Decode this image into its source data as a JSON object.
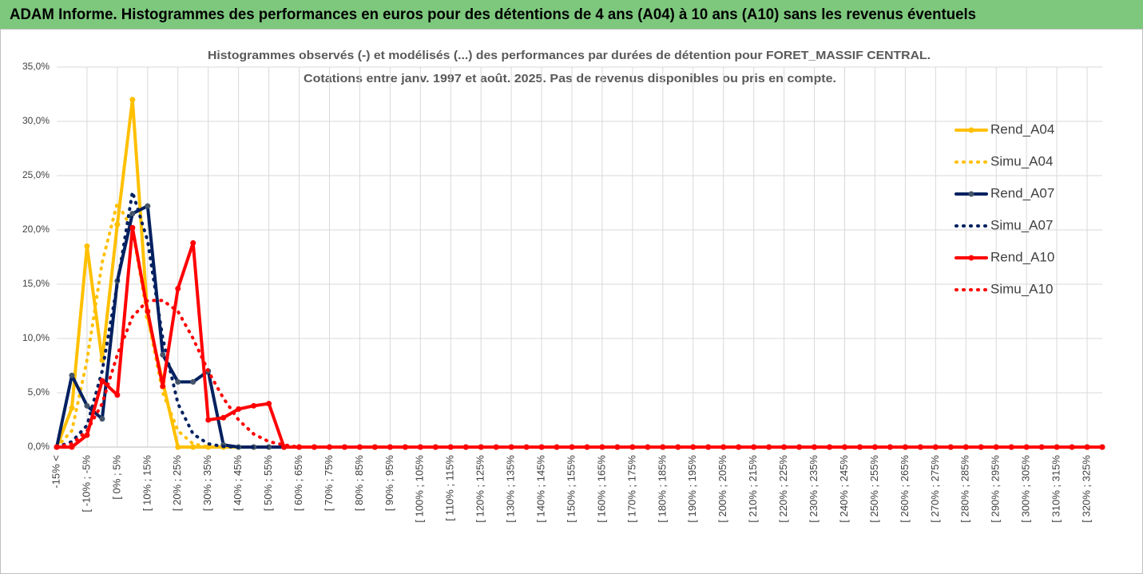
{
  "header": {
    "title": "ADAM Informe. Histogrammes des performances en euros pour des détentions de 4 ans (A04) à 10 ans (A10) sans les revenus éventuels"
  },
  "chart_data": {
    "type": "line",
    "title": [
      "Histogrammes observés (-) et modélisés (...) des performances par durées de détention pour FORET_MASSIF CENTRAL.",
      "Cotations entre janv. 1997 et août. 2025. Pas de revenus disponibles ou pris en compte."
    ],
    "categories": [
      "-15% <",
      null,
      "[ -10% ; -5%",
      null,
      "[ 0% ; 5%",
      null,
      "[ 10% ; 15%",
      null,
      "[ 20% ; 25%",
      null,
      "[ 30% ; 35%",
      null,
      "[ 40% ; 45%",
      null,
      "[ 50% ; 55%",
      null,
      "[ 60% ; 65%",
      null,
      "[ 70% ; 75%",
      null,
      "[ 80% ; 85%",
      null,
      "[ 90% ; 95%",
      null,
      "[ 100% ; 105%",
      null,
      "[ 110% ; 115%",
      null,
      "[ 120% ; 125%",
      null,
      "[ 130% ; 135%",
      null,
      "[ 140% ; 145%",
      null,
      "[ 150% ; 155%",
      null,
      "[ 160% ; 165%",
      null,
      "[ 170% ; 175%",
      null,
      "[ 180% ; 185%",
      null,
      "[ 190% ; 195%",
      null,
      "[ 200% ; 205%",
      null,
      "[ 210% ; 215%",
      null,
      "[ 220% ; 225%",
      null,
      "[ 230% ; 235%",
      null,
      "[ 240% ; 245%",
      null,
      "[ 250% ; 255%",
      null,
      "[ 260% ; 265%",
      null,
      "[ 270% ; 275%",
      null,
      "[ 280% ; 285%",
      null,
      "[ 290% ; 295%",
      null,
      "[ 300% ; 305%",
      null,
      "[ 310% ; 315%",
      null,
      "[ 320% ; 325%",
      null
    ],
    "series": [
      {
        "name": "Rend_A04",
        "color": "#FFC000",
        "line_style": "solid",
        "markers": true,
        "values": [
          0,
          3.6,
          18.5,
          8.0,
          20.5,
          32.0,
          12.0,
          6.0,
          0,
          0,
          0,
          0,
          0,
          0,
          0,
          0,
          0,
          0,
          0,
          0,
          0,
          0,
          0,
          0,
          0,
          0,
          0,
          0,
          0,
          0,
          0,
          0,
          0,
          0,
          0,
          0,
          0,
          0,
          0,
          0,
          0,
          0,
          0,
          0,
          0,
          0,
          0,
          0,
          0,
          0,
          0,
          0,
          0,
          0,
          0,
          0,
          0,
          0,
          0,
          0,
          0,
          0,
          0,
          0,
          0,
          0,
          0,
          0,
          0,
          0
        ]
      },
      {
        "name": "Simu_A04",
        "color": "#FFC000",
        "line_style": "dotted",
        "markers": false,
        "values": [
          0,
          1.5,
          8,
          17,
          22.5,
          20,
          12,
          5,
          1.5,
          0.3,
          0,
          0,
          0,
          0,
          0,
          0,
          0,
          0,
          0,
          0,
          0,
          0,
          0,
          0,
          0,
          0,
          0,
          0,
          0,
          0,
          0,
          0,
          0,
          0,
          0,
          0,
          0,
          0,
          0,
          0,
          0,
          0,
          0,
          0,
          0,
          0,
          0,
          0,
          0,
          0,
          0,
          0,
          0,
          0,
          0,
          0,
          0,
          0,
          0,
          0,
          0,
          0,
          0,
          0,
          0,
          0,
          0,
          0,
          0,
          0
        ]
      },
      {
        "name": "Rend_A07",
        "color": "#002060",
        "line_style": "solid",
        "markers": true,
        "values": [
          0,
          6.6,
          3.8,
          2.6,
          15.3,
          21.5,
          22.2,
          8.5,
          6.0,
          6.0,
          7.0,
          0.2,
          0,
          0,
          0,
          0,
          0,
          0,
          0,
          0,
          0,
          0,
          0,
          0,
          0,
          0,
          0,
          0,
          0,
          0,
          0,
          0,
          0,
          0,
          0,
          0,
          0,
          0,
          0,
          0,
          0,
          0,
          0,
          0,
          0,
          0,
          0,
          0,
          0,
          0,
          0,
          0,
          0,
          0,
          0,
          0,
          0,
          0,
          0,
          0,
          0,
          0,
          0,
          0,
          0,
          0,
          0,
          0,
          0,
          0
        ]
      },
      {
        "name": "Simu_A07",
        "color": "#002060",
        "line_style": "dotted",
        "markers": false,
        "values": [
          0,
          0.5,
          2,
          7,
          15,
          23.5,
          19,
          10,
          4,
          1.2,
          0.3,
          0.05,
          0,
          0,
          0,
          0,
          0,
          0,
          0,
          0,
          0,
          0,
          0,
          0,
          0,
          0,
          0,
          0,
          0,
          0,
          0,
          0,
          0,
          0,
          0,
          0,
          0,
          0,
          0,
          0,
          0,
          0,
          0,
          0,
          0,
          0,
          0,
          0,
          0,
          0,
          0,
          0,
          0,
          0,
          0,
          0,
          0,
          0,
          0,
          0,
          0,
          0,
          0,
          0,
          0,
          0,
          0,
          0,
          0,
          0
        ]
      },
      {
        "name": "Rend_A10",
        "color": "#FF0000",
        "line_style": "solid",
        "markers": true,
        "values": [
          0,
          0,
          1.1,
          6.1,
          4.8,
          20.2,
          12.5,
          5.6,
          14.6,
          18.8,
          2.5,
          2.7,
          3.5,
          3.8,
          4.0,
          0,
          0,
          0,
          0,
          0,
          0,
          0,
          0,
          0,
          0,
          0,
          0,
          0,
          0,
          0,
          0,
          0,
          0,
          0,
          0,
          0,
          0,
          0,
          0,
          0,
          0,
          0,
          0,
          0,
          0,
          0,
          0,
          0,
          0,
          0,
          0,
          0,
          0,
          0,
          0,
          0,
          0,
          0,
          0,
          0,
          0,
          0,
          0,
          0,
          0,
          0,
          0,
          0,
          0,
          0
        ]
      },
      {
        "name": "Simu_A10",
        "color": "#FF0000",
        "line_style": "dotted",
        "markers": false,
        "values": [
          0,
          0.3,
          1.5,
          4,
          8.5,
          12,
          13.5,
          13.5,
          12.5,
          10,
          7,
          4.5,
          2.5,
          1.2,
          0.5,
          0.2,
          0,
          0,
          0,
          0,
          0,
          0,
          0,
          0,
          0,
          0,
          0,
          0,
          0,
          0,
          0,
          0,
          0,
          0,
          0,
          0,
          0,
          0,
          0,
          0,
          0,
          0,
          0,
          0,
          0,
          0,
          0,
          0,
          0,
          0,
          0,
          0,
          0,
          0,
          0,
          0,
          0,
          0,
          0,
          0,
          0,
          0,
          0,
          0,
          0,
          0,
          0,
          0,
          0,
          0
        ]
      }
    ],
    "ylim": [
      0,
      35
    ],
    "yticks": [
      {
        "value": 0,
        "label": "0,0%"
      },
      {
        "value": 5,
        "label": "5,0%"
      },
      {
        "value": 10,
        "label": "10,0%"
      },
      {
        "value": 15,
        "label": "15,0%"
      },
      {
        "value": 20,
        "label": "20,0%"
      },
      {
        "value": 25,
        "label": "25,0%"
      },
      {
        "value": 30,
        "label": "30,0%"
      },
      {
        "value": 35,
        "label": "35,0%"
      }
    ],
    "grid": true,
    "legend": "right"
  }
}
